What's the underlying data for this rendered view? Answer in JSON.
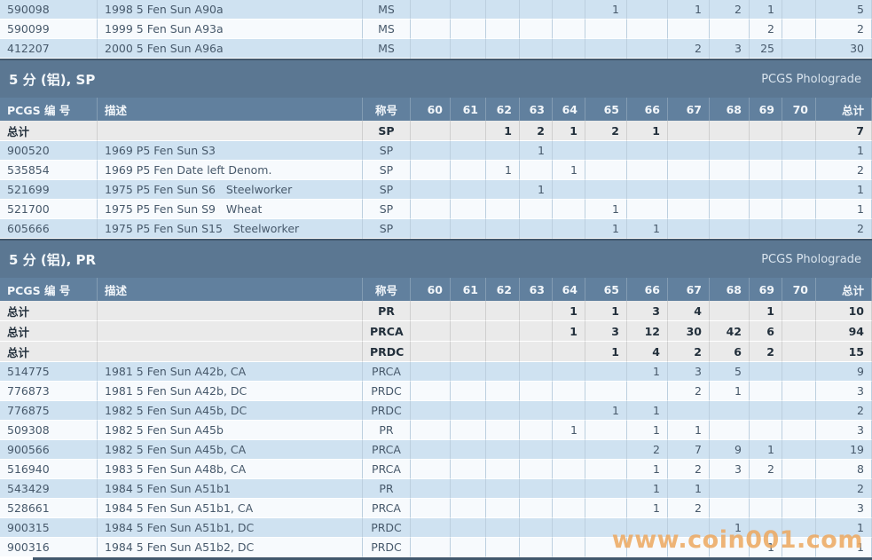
{
  "page": {
    "watermark": "www.coin001.com"
  },
  "table": {
    "headers": [
      "PCGS 编 号",
      "描述",
      "称号",
      "60",
      "61",
      "62",
      "63",
      "64",
      "65",
      "66",
      "67",
      "68",
      "69",
      "70",
      "总计"
    ],
    "grade_keys": [
      "60",
      "61",
      "62",
      "63",
      "64",
      "65",
      "66",
      "67",
      "68",
      "69",
      "70"
    ],
    "totals_label": "总计"
  },
  "sections": [
    {
      "kind": "rows-fragment",
      "rows": [
        {
          "id": "590098",
          "desc": "1998 5 Fen Sun A90a",
          "designation": "MS",
          "grades": {
            "65": "1",
            "67": "1",
            "68": "2",
            "69": "1"
          },
          "total": "5"
        },
        {
          "id": "590099",
          "desc": "1999 5 Fen Sun A93a",
          "designation": "MS",
          "grades": {
            "69": "2"
          },
          "total": "2"
        },
        {
          "id": "412207",
          "desc": "2000 5 Fen Sun A96a",
          "designation": "MS",
          "grades": {
            "67": "2",
            "68": "3",
            "69": "25"
          },
          "total": "30"
        }
      ]
    },
    {
      "kind": "section",
      "title": "5 分 (铝), SP",
      "right_label": "PCGS Pholograde",
      "totals": [
        {
          "designation": "SP",
          "grades": {
            "62": "1",
            "63": "2",
            "64": "1",
            "65": "2",
            "66": "1"
          },
          "total": "7"
        }
      ],
      "rows": [
        {
          "id": "900520",
          "desc": "1969 P5 Fen Sun S3",
          "designation": "SP",
          "grades": {
            "63": "1"
          },
          "total": "1"
        },
        {
          "id": "535854",
          "desc": "1969 P5 Fen Date left Denom.",
          "designation": "SP",
          "grades": {
            "62": "1",
            "64": "1"
          },
          "total": "2"
        },
        {
          "id": "521699",
          "desc": "1975 P5 Fen Sun S6   Steelworker",
          "designation": "SP",
          "grades": {
            "63": "1"
          },
          "total": "1"
        },
        {
          "id": "521700",
          "desc": "1975 P5 Fen Sun S9   Wheat",
          "designation": "SP",
          "grades": {
            "65": "1"
          },
          "total": "1"
        },
        {
          "id": "605666",
          "desc": "1975 P5 Fen Sun S15   Steelworker",
          "designation": "SP",
          "grades": {
            "65": "1",
            "66": "1"
          },
          "total": "2"
        }
      ]
    },
    {
      "kind": "section",
      "title": "5 分 (铝), PR",
      "right_label": "PCGS Pholograde",
      "totals": [
        {
          "designation": "PR",
          "grades": {
            "64": "1",
            "65": "1",
            "66": "3",
            "67": "4",
            "69": "1"
          },
          "total": "10"
        },
        {
          "designation": "PRCA",
          "grades": {
            "64": "1",
            "65": "3",
            "66": "12",
            "67": "30",
            "68": "42",
            "69": "6"
          },
          "total": "94"
        },
        {
          "designation": "PRDC",
          "grades": {
            "65": "1",
            "66": "4",
            "67": "2",
            "68": "6",
            "69": "2"
          },
          "total": "15"
        }
      ],
      "rows": [
        {
          "id": "514775",
          "desc": "1981 5 Fen Sun A42b, CA",
          "designation": "PRCA",
          "grades": {
            "66": "1",
            "67": "3",
            "68": "5"
          },
          "total": "9"
        },
        {
          "id": "776873",
          "desc": "1981 5 Fen Sun A42b, DC",
          "designation": "PRDC",
          "grades": {
            "67": "2",
            "68": "1"
          },
          "total": "3"
        },
        {
          "id": "776875",
          "desc": "1982 5 Fen Sun A45b, DC",
          "designation": "PRDC",
          "grades": {
            "65": "1",
            "66": "1"
          },
          "total": "2"
        },
        {
          "id": "509308",
          "desc": "1982 5 Fen Sun A45b",
          "designation": "PR",
          "grades": {
            "64": "1",
            "66": "1",
            "67": "1"
          },
          "total": "3"
        },
        {
          "id": "900566",
          "desc": "1982 5 Fen Sun A45b, CA",
          "designation": "PRCA",
          "grades": {
            "66": "2",
            "67": "7",
            "68": "9",
            "69": "1"
          },
          "total": "19"
        },
        {
          "id": "516940",
          "desc": "1983 5 Fen Sun A48b, CA",
          "designation": "PRCA",
          "grades": {
            "66": "1",
            "67": "2",
            "68": "3",
            "69": "2"
          },
          "total": "8"
        },
        {
          "id": "543429",
          "desc": "1984 5 Fen Sun A51b1",
          "designation": "PR",
          "grades": {
            "66": "1",
            "67": "1"
          },
          "total": "2"
        },
        {
          "id": "528661",
          "desc": "1984 5 Fen Sun A51b1, CA",
          "designation": "PRCA",
          "grades": {
            "66": "1",
            "67": "2"
          },
          "total": "3"
        },
        {
          "id": "900315",
          "desc": "1984 5 Fen Sun A51b1, DC",
          "designation": "PRDC",
          "grades": {
            "68": "1"
          },
          "total": "1"
        },
        {
          "id": "900316",
          "desc": "1984 5 Fen Sun A51b2, DC",
          "designation": "PRDC",
          "grades": {
            "69": "1"
          },
          "total": "1"
        }
      ]
    }
  ],
  "colors": {
    "accent_link": "#b0764f",
    "section_bar": "#5b7792",
    "header_bar": "#61809e",
    "row_blue": "#cfe2f1",
    "row_white": "#f7fafd",
    "row_total": "#eaeaea",
    "divider": "#42586d",
    "watermark": "#eca75e"
  }
}
